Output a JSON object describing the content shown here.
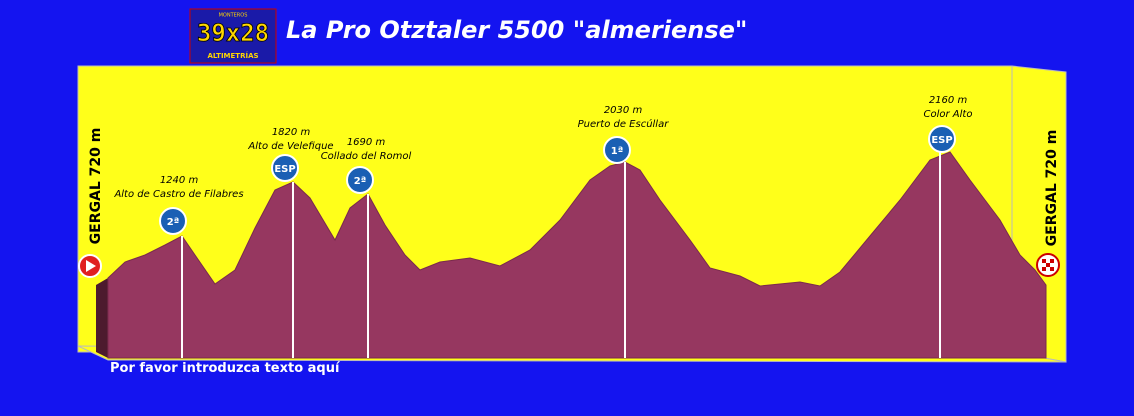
{
  "logo": {
    "top": "MONTEROS",
    "main": "39x28",
    "bottom": "ALTIMETRÍAS"
  },
  "title": "La Pro Otztaler 5500 \"almeriense\"",
  "start_label": "GERGAL 720 m",
  "finish_label": "GERGAL 720 m",
  "climbs": [
    {
      "elevation": "1240 m",
      "name": "Alto de Castro de Filabres",
      "category": "2ª"
    },
    {
      "elevation": "1820 m",
      "name": "Alto de Velefique",
      "category": "ESP"
    },
    {
      "elevation": "1690 m",
      "name": "Collado del Romol",
      "category": "2ª"
    },
    {
      "elevation": "2030 m",
      "name": "Puerto de Escúllar",
      "category": "1ª"
    },
    {
      "elevation": "2160 m",
      "name": "Color Alto",
      "category": "ESP"
    }
  ],
  "footer": "Por favor introduzca texto aquí"
}
